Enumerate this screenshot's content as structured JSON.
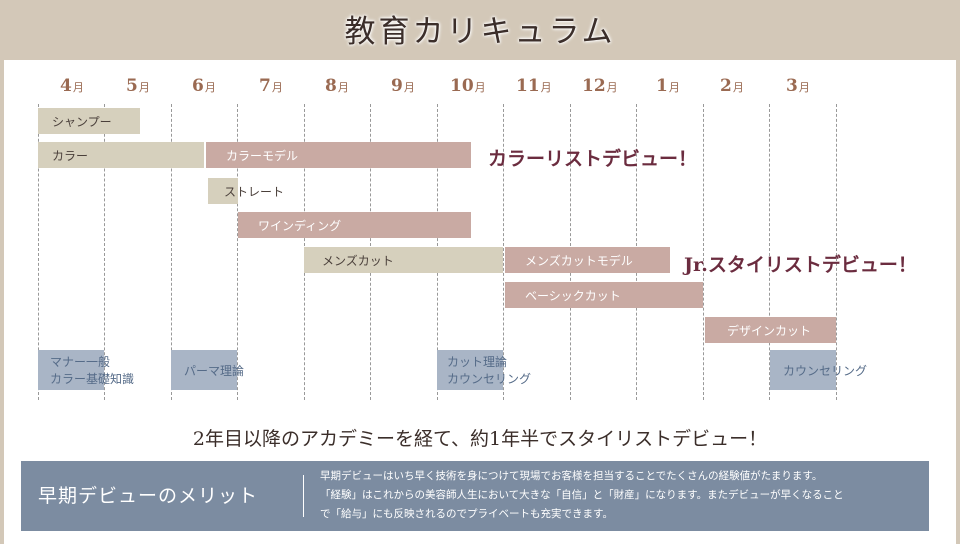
{
  "title": "教育カリキュラム",
  "months": [
    {
      "num": "4",
      "unit": "月"
    },
    {
      "num": "5",
      "unit": "月"
    },
    {
      "num": "6",
      "unit": "月"
    },
    {
      "num": "7",
      "unit": "月"
    },
    {
      "num": "8",
      "unit": "月"
    },
    {
      "num": "9",
      "unit": "月"
    },
    {
      "num": "10",
      "unit": "月"
    },
    {
      "num": "11",
      "unit": "月"
    },
    {
      "num": "12",
      "unit": "月"
    },
    {
      "num": "1",
      "unit": "月"
    },
    {
      "num": "2",
      "unit": "月"
    },
    {
      "num": "3",
      "unit": "月"
    }
  ],
  "bars": {
    "shampoo": "シャンプー",
    "color": "カラー",
    "color_model": "カラーモデル",
    "straight": "ストレート",
    "winding": "ワインディング",
    "mens_cut": "メンズカット",
    "mens_cut_model": "メンズカットモデル",
    "basic_cut": "ベーシックカット",
    "design_cut": "デザインカット",
    "manners_line1": "マナー一般",
    "manners_line2": "カラー基礎知識",
    "perm_theory": "パーマ理論",
    "cut_theory_line1": "カット理論",
    "cut_theory_line2": "カウンセリング",
    "counseling": "カウンセリング"
  },
  "debuts": {
    "colorist": "カラーリストデビュー！",
    "jr_stylist": "Jr.スタイリストデビュー！"
  },
  "subhead": "2年目以降のアカデミーを経て、約1年半でスタイリストデビュー！",
  "merit": {
    "title": "早期デビューのメリット",
    "line1": "早期デビューはいち早く技術を身につけて現場でお客様を担当することでたくさんの経験値がたまります。",
    "line2": "「経験」はこれからの美容師人生において大きな「自信」と「財産」になります。またデビューが早くなること",
    "line3": "で「給与」にも反映されるのでプライベートも充実できます。"
  },
  "colors": {
    "header_bg": "#d3c8b8",
    "beige_bar": "#d6d0bd",
    "rose_bar": "#c9aaa3",
    "blue_bar": "#a9b5c6",
    "month_text": "#9a6a52",
    "debut_text": "#6b2c3f",
    "merit_bg": "#7c8ca1"
  }
}
